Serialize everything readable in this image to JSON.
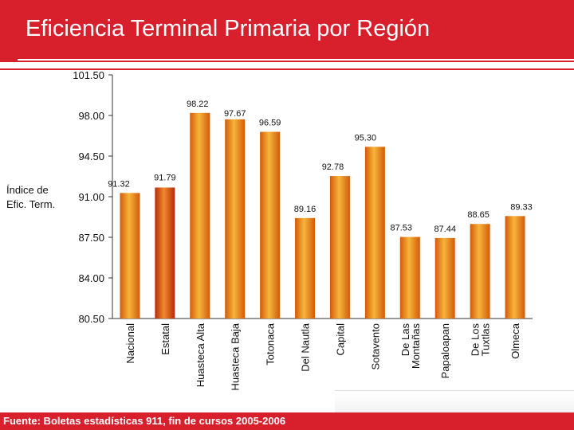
{
  "header": {
    "title": "Eficiencia Terminal Primaria por Región"
  },
  "footer": {
    "source": "Fuente: Boletas estadísticas 911, fin de cursos 2005-2006"
  },
  "colors": {
    "accent": "#d8202d",
    "bar_light": "#f7b53a",
    "bar_dark": "#d35a0a",
    "bar_red_dark": "#b8290c"
  },
  "chart_data": {
    "type": "bar",
    "ylabel_lines": [
      "Índice de",
      "Efic. Term."
    ],
    "ylim": [
      80.5,
      101.5
    ],
    "yticks": [
      "101.50",
      "98.00",
      "94.50",
      "91.00",
      "87.50",
      "84.00",
      "80.50"
    ],
    "categories": [
      [
        "Nacional"
      ],
      [
        "Estatal"
      ],
      [
        "Huasteca Alta"
      ],
      [
        "Huasteca Baja"
      ],
      [
        "Totonaca"
      ],
      [
        "Del Nautla"
      ],
      [
        "Capital"
      ],
      [
        "Sotavento"
      ],
      [
        "De Las",
        "Montañas"
      ],
      [
        "Papaloapan"
      ],
      [
        "De Los",
        "Tuxtlas"
      ],
      [
        "Olmeca"
      ]
    ],
    "values": [
      91.32,
      91.79,
      98.22,
      97.67,
      96.59,
      89.16,
      92.78,
      95.3,
      87.53,
      87.44,
      88.65,
      89.33
    ],
    "value_labels": [
      "91.32",
      "91.79",
      "98.22",
      "97.67",
      "96.59",
      "89.16",
      "92.78",
      "95.30",
      "87.53",
      "87.44",
      "88.65",
      "89.33"
    ],
    "grid": false,
    "legend": "none"
  }
}
